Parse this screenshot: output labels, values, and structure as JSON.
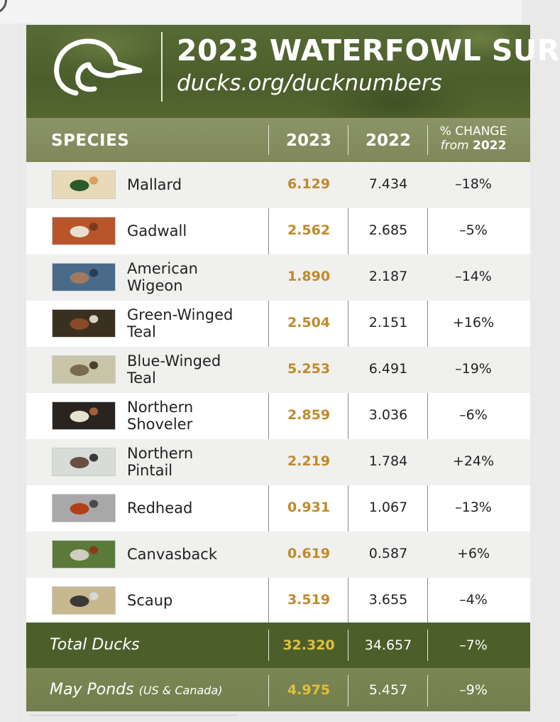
{
  "header": {
    "title": "2023 WATERFOWL SUR",
    "url": "ducks.org/ducknumbers",
    "logo_icon": "duck-head-logo-icon"
  },
  "table_header": {
    "species": "SPECIES",
    "year_current": "2023",
    "year_previous": "2022",
    "change_line1": "% CHANGE",
    "change_from": "from",
    "change_year": "2022"
  },
  "rows": [
    {
      "name_line1": "Mallard",
      "name_line2": "",
      "v2023": "6.129",
      "v2022": "7.434",
      "change": "–18%",
      "thumb_colors": [
        "#e8d9b8",
        "#2a5a2a",
        "#d8a060"
      ]
    },
    {
      "name_line1": "Gadwall",
      "name_line2": "",
      "v2023": "2.562",
      "v2022": "2.685",
      "change": "–5%",
      "thumb_colors": [
        "#b8552a",
        "#e9ddd0",
        "#7a3a1a"
      ]
    },
    {
      "name_line1": "American",
      "name_line2": "Wigeon",
      "v2023": "1.890",
      "v2022": "2.187",
      "change": "–14%",
      "thumb_colors": [
        "#4a6a8a",
        "#a07a60",
        "#2c3c50"
      ]
    },
    {
      "name_line1": "Green-Winged",
      "name_line2": "Teal",
      "v2023": "2.504",
      "v2022": "2.151",
      "change": "+16%",
      "thumb_colors": [
        "#3a3020",
        "#8a4a2a",
        "#d8d0c0"
      ]
    },
    {
      "name_line1": "Blue-Winged",
      "name_line2": "Teal",
      "v2023": "5.253",
      "v2022": "6.491",
      "change": "–19%",
      "thumb_colors": [
        "#c8c4a8",
        "#7a6a50",
        "#4a4030"
      ]
    },
    {
      "name_line1": "Northern",
      "name_line2": "Shoveler",
      "v2023": "2.859",
      "v2022": "3.036",
      "change": "–6%",
      "thumb_colors": [
        "#2a2420",
        "#e8e0d0",
        "#a0603a"
      ]
    },
    {
      "name_line1": "Northern",
      "name_line2": "Pintail",
      "v2023": "2.219",
      "v2022": "1.784",
      "change": "+24%",
      "thumb_colors": [
        "#d8dcd8",
        "#6a5040",
        "#3a3a3a"
      ]
    },
    {
      "name_line1": "Redhead",
      "name_line2": "",
      "v2023": "0.931",
      "v2022": "1.067",
      "change": "–13%",
      "thumb_colors": [
        "#a8a8a8",
        "#b0401a",
        "#4a4a4a"
      ]
    },
    {
      "name_line1": "Canvasback",
      "name_line2": "",
      "v2023": "0.619",
      "v2022": "0.587",
      "change": "+6%",
      "thumb_colors": [
        "#5a7a3a",
        "#d0ccc0",
        "#8a3a1a"
      ]
    },
    {
      "name_line1": "Scaup",
      "name_line2": "",
      "v2023": "3.519",
      "v2022": "3.655",
      "change": "–4%",
      "thumb_colors": [
        "#c8b890",
        "#3a3a3a",
        "#d8d8d8"
      ]
    }
  ],
  "totals": {
    "label": "Total Ducks",
    "v2023": "32.320",
    "v2022": "34.657",
    "change": "–7%"
  },
  "ponds": {
    "label": "May Ponds",
    "label_small": "(US & Canada)",
    "v2023": "4.975",
    "v2022": "5.457",
    "change": "–9%"
  },
  "colors": {
    "banner": "#4b5e2c",
    "header_band": "#848d5f",
    "value_2023": "#c08a2c",
    "total_band": "#4c5f2a",
    "ponds_band": "#77824f",
    "total_value": "#e0c040"
  }
}
